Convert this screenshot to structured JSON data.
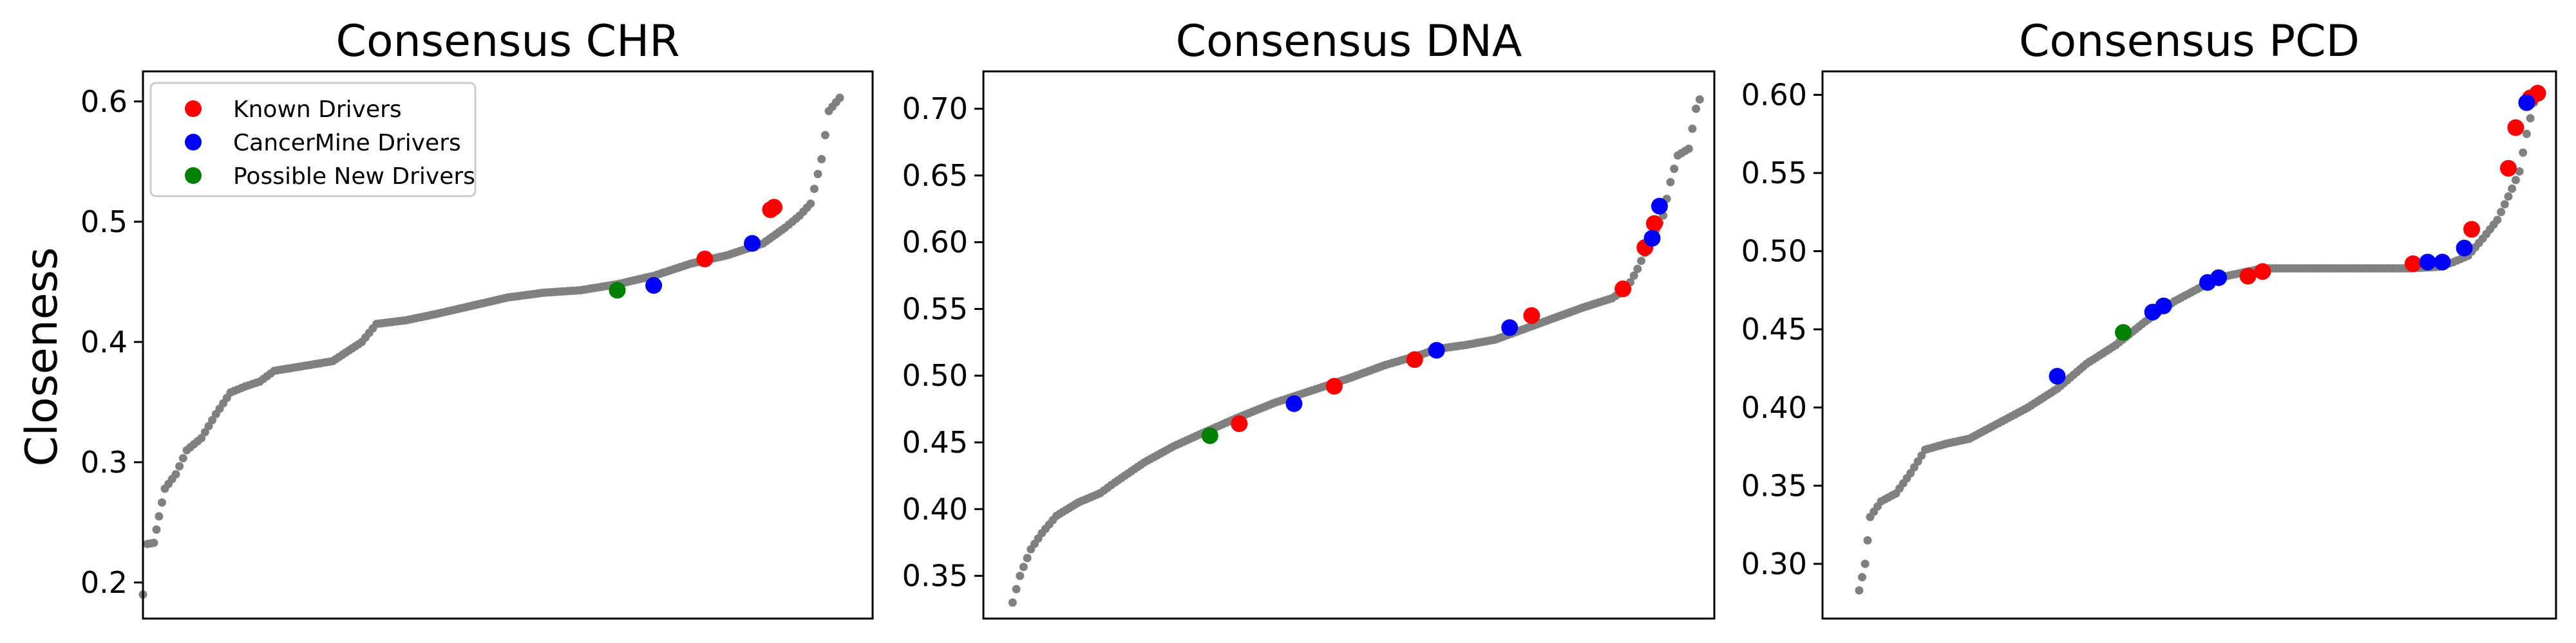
{
  "figure": {
    "ylabel": "Closeness"
  },
  "legend": {
    "placement": "top-left",
    "entries": [
      {
        "label": "Known Drivers",
        "color": "#ff0000"
      },
      {
        "label": "CancerMine Drivers",
        "color": "#0000ff"
      },
      {
        "label": "Possible New Drivers",
        "color": "#008000"
      }
    ]
  },
  "colors": {
    "background_genes": "#808080",
    "known": "#ff0000",
    "cancermine": "#0000ff",
    "possible_new": "#008000"
  },
  "chart_data": [
    {
      "type": "scatter",
      "title": "Consensus CHR",
      "xlabel": "",
      "ylabel": "Closeness",
      "xlim": [
        0,
        100
      ],
      "ylim": [
        0.17,
        0.625
      ],
      "yticks": [
        "0.2",
        "0.3",
        "0.4",
        "0.5",
        "0.6"
      ],
      "grid": false,
      "curve": [
        [
          0,
          0.19
        ],
        [
          0.6,
          0.232
        ],
        [
          1.5,
          0.233
        ],
        [
          2.2,
          0.255
        ],
        [
          3,
          0.278
        ],
        [
          4.5,
          0.29
        ],
        [
          6,
          0.31
        ],
        [
          8,
          0.32
        ],
        [
          10,
          0.34
        ],
        [
          12,
          0.358
        ],
        [
          14,
          0.363
        ],
        [
          16,
          0.367
        ],
        [
          18,
          0.376
        ],
        [
          22,
          0.38
        ],
        [
          26,
          0.384
        ],
        [
          30,
          0.4
        ],
        [
          32,
          0.415
        ],
        [
          36,
          0.418
        ],
        [
          40,
          0.423
        ],
        [
          45,
          0.43
        ],
        [
          50,
          0.437
        ],
        [
          55,
          0.441
        ],
        [
          60,
          0.443
        ],
        [
          65,
          0.448
        ],
        [
          70,
          0.455
        ],
        [
          75,
          0.465
        ],
        [
          80,
          0.472
        ],
        [
          85,
          0.482
        ],
        [
          88,
          0.495
        ],
        [
          90,
          0.505
        ],
        [
          91.5,
          0.515
        ],
        [
          93,
          0.552
        ],
        [
          94,
          0.592
        ],
        [
          95.5,
          0.603
        ]
      ],
      "highlights": {
        "known": [
          [
            77,
            0.469
          ],
          [
            86,
            0.51
          ],
          [
            86.5,
            0.512
          ]
        ],
        "cancermine": [
          [
            70,
            0.447
          ],
          [
            83.5,
            0.482
          ]
        ],
        "possible_new": [
          [
            65,
            0.443
          ]
        ]
      }
    },
    {
      "type": "scatter",
      "title": "Consensus DNA",
      "xlabel": "",
      "ylabel": "",
      "xlim": [
        0,
        100
      ],
      "ylim": [
        0.318,
        0.728
      ],
      "yticks": [
        "0.35",
        "0.40",
        "0.45",
        "0.50",
        "0.55",
        "0.60",
        "0.65",
        "0.70"
      ],
      "grid": false,
      "curve": [
        [
          4,
          0.33
        ],
        [
          5,
          0.35
        ],
        [
          6.5,
          0.37
        ],
        [
          8,
          0.382
        ],
        [
          10,
          0.395
        ],
        [
          13,
          0.405
        ],
        [
          16,
          0.412
        ],
        [
          18,
          0.42
        ],
        [
          22,
          0.435
        ],
        [
          26,
          0.447
        ],
        [
          30,
          0.457
        ],
        [
          35,
          0.469
        ],
        [
          40,
          0.48
        ],
        [
          45,
          0.489
        ],
        [
          50,
          0.498
        ],
        [
          55,
          0.508
        ],
        [
          60,
          0.516
        ],
        [
          62,
          0.52
        ],
        [
          66,
          0.523
        ],
        [
          70,
          0.527
        ],
        [
          74,
          0.535
        ],
        [
          78,
          0.543
        ],
        [
          82,
          0.551
        ],
        [
          86,
          0.558
        ],
        [
          88,
          0.565
        ],
        [
          89.5,
          0.58
        ],
        [
          91,
          0.598
        ],
        [
          93,
          0.62
        ],
        [
          94,
          0.645
        ],
        [
          95,
          0.665
        ],
        [
          96.5,
          0.67
        ],
        [
          97.5,
          0.7
        ],
        [
          98,
          0.707
        ]
      ],
      "highlights": {
        "known": [
          [
            35,
            0.464
          ],
          [
            48,
            0.492
          ],
          [
            59,
            0.512
          ],
          [
            75,
            0.545
          ],
          [
            87.5,
            0.565
          ],
          [
            90.5,
            0.596
          ],
          [
            91.8,
            0.614
          ]
        ],
        "cancermine": [
          [
            42.5,
            0.479
          ],
          [
            62,
            0.519
          ],
          [
            72,
            0.536
          ],
          [
            91.5,
            0.603
          ],
          [
            92.5,
            0.627
          ]
        ],
        "possible_new": [
          [
            31,
            0.455
          ]
        ]
      }
    },
    {
      "type": "scatter",
      "title": "Consensus PCD",
      "xlabel": "",
      "ylabel": "",
      "xlim": [
        0,
        100
      ],
      "ylim": [
        0.265,
        0.615
      ],
      "yticks": [
        "0.30",
        "0.35",
        "0.40",
        "0.45",
        "0.50",
        "0.55",
        "0.60"
      ],
      "grid": false,
      "curve": [
        [
          5,
          0.283
        ],
        [
          5.8,
          0.3
        ],
        [
          6.5,
          0.33
        ],
        [
          8,
          0.34
        ],
        [
          10,
          0.345
        ],
        [
          12,
          0.358
        ],
        [
          14,
          0.373
        ],
        [
          17,
          0.377
        ],
        [
          20,
          0.38
        ],
        [
          24,
          0.39
        ],
        [
          28,
          0.4
        ],
        [
          32,
          0.412
        ],
        [
          36,
          0.428
        ],
        [
          40,
          0.44
        ],
        [
          44,
          0.455
        ],
        [
          48,
          0.468
        ],
        [
          52,
          0.478
        ],
        [
          55,
          0.484
        ],
        [
          60,
          0.489
        ],
        [
          70,
          0.489
        ],
        [
          80,
          0.489
        ],
        [
          84,
          0.49
        ],
        [
          86,
          0.493
        ],
        [
          88,
          0.497
        ],
        [
          90,
          0.508
        ],
        [
          92,
          0.52
        ],
        [
          93,
          0.53
        ],
        [
          94,
          0.54
        ],
        [
          95,
          0.551
        ],
        [
          96,
          0.575
        ],
        [
          97,
          0.595
        ],
        [
          98,
          0.601
        ]
      ],
      "highlights": {
        "known": [
          [
            58,
            0.484
          ],
          [
            60,
            0.487
          ],
          [
            80.5,
            0.492
          ],
          [
            88.5,
            0.514
          ],
          [
            93.5,
            0.553
          ],
          [
            94.5,
            0.579
          ],
          [
            96.5,
            0.598
          ],
          [
            97.5,
            0.601
          ]
        ],
        "cancermine": [
          [
            32,
            0.42
          ],
          [
            45,
            0.461
          ],
          [
            46.5,
            0.465
          ],
          [
            52.5,
            0.48
          ],
          [
            54,
            0.483
          ],
          [
            82.5,
            0.493
          ],
          [
            84.5,
            0.493
          ],
          [
            87.5,
            0.502
          ],
          [
            96,
            0.595
          ]
        ],
        "possible_new": [
          [
            41,
            0.448
          ]
        ]
      }
    }
  ]
}
